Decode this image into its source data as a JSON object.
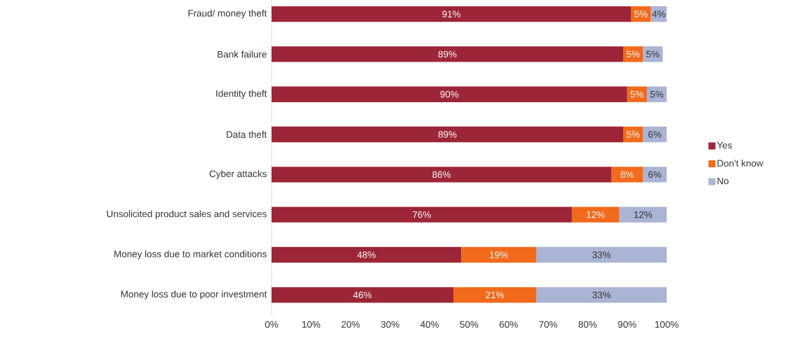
{
  "chart_data": {
    "type": "bar",
    "orientation": "horizontal",
    "stacked": true,
    "categories": [
      "Fraud/ money theft",
      "Bank failure",
      "Identity theft",
      "Data theft",
      "Cyber attacks",
      "Unsolicited product sales and services",
      "Money loss due to market conditions",
      "Money loss due to poor investment"
    ],
    "series": [
      {
        "name": "Yes",
        "color": "#9c2638",
        "values": [
          91,
          89,
          90,
          89,
          86,
          76,
          48,
          46
        ],
        "value_labels": [
          "91%",
          "89%",
          "90%",
          "89%",
          "86%",
          "76%",
          "48%",
          "46%"
        ]
      },
      {
        "name": "Don't know",
        "color": "#f26a1b",
        "values": [
          5,
          5,
          5,
          5,
          8,
          12,
          19,
          21
        ],
        "value_labels": [
          "5%",
          "5%",
          "5%",
          "5%",
          "8%",
          "12%",
          "19%",
          "21%"
        ]
      },
      {
        "name": "No",
        "color": "#aab4d4",
        "values": [
          4,
          5,
          5,
          6,
          6,
          12,
          33,
          33
        ],
        "value_labels": [
          "4%",
          "5%",
          "5%",
          "6%",
          "6%",
          "12%",
          "33%",
          "33%"
        ]
      }
    ],
    "xlim": [
      0,
      100
    ],
    "xticks": [
      {
        "value": 0,
        "label": "0%"
      },
      {
        "value": 10,
        "label": "10%"
      },
      {
        "value": 20,
        "label": "20%"
      },
      {
        "value": 30,
        "label": "30%"
      },
      {
        "value": 40,
        "label": "40%"
      },
      {
        "value": 50,
        "label": "50%"
      },
      {
        "value": 60,
        "label": "60%"
      },
      {
        "value": 70,
        "label": "70%"
      },
      {
        "value": 80,
        "label": "80%"
      },
      {
        "value": 90,
        "label": "90%"
      },
      {
        "value": 100,
        "label": "100%"
      }
    ],
    "legend": "right",
    "grid": false
  }
}
